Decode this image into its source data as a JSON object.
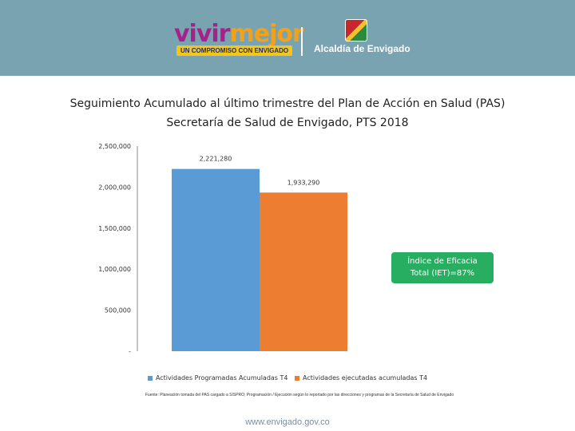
{
  "header": {
    "logo_word1": "vivir",
    "logo_word2": "mejor",
    "tagline": "UN COMPROMISO CON ENVIGADO",
    "alcaldia": "Alcaldía de Envigado"
  },
  "colors": {
    "header_bg": "#7aa3b1",
    "series1": "#5b9bd5",
    "series2": "#ed7d31",
    "callout_bg": "#27ae60"
  },
  "chart_data": {
    "type": "bar",
    "title_line1": "Seguimiento Acumulado al último trimestre del Plan de Acción en Salud (PAS)",
    "title_line2": "Secretaría de Salud de Envigado, PTS 2018",
    "ylim": [
      0,
      2500000
    ],
    "y_ticks": [
      0,
      500000,
      1000000,
      1500000,
      2000000,
      2500000
    ],
    "y_tick_labels": [
      "-",
      "500,000",
      "1,000,000",
      "1,500,000",
      "2,000,000",
      "2,500,000"
    ],
    "grid": false,
    "legend_position": "bottom",
    "series": [
      {
        "name": "Actividades Programadas Acumuladas T4",
        "value": 2221280,
        "label": "2,221,280",
        "color": "#5b9bd5"
      },
      {
        "name": "Actividades ejecutadas acumuladas T4",
        "value": 1933290,
        "label": "1,933,290",
        "color": "#ed7d31"
      }
    ],
    "annotation": "Índice de Eficacia\nTotal  (IET)=87%"
  },
  "source_note": "Fuente: Planeación tomada del PAS cargado a SISPRO; Programación / Ejecución según lo reportado por las direcciones y programas de la Secretaría de Salud de Envigado",
  "footer_url": "www.envigado.gov.co"
}
